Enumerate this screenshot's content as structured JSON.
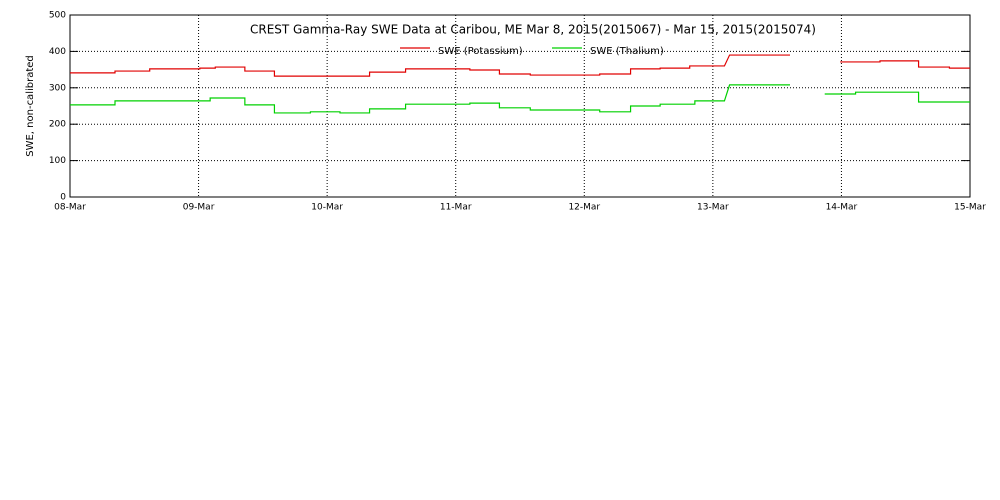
{
  "chart_data": {
    "type": "line",
    "title": "CREST Gamma-Ray SWE Data at Caribou, ME   Mar  8, 2015(2015067) - Mar 15, 2015(2015074)",
    "ylabel": "SWE, non-calibrated",
    "xlim": [
      0,
      7
    ],
    "xticks": [
      {
        "value": 0,
        "label": "08-Mar"
      },
      {
        "value": 1,
        "label": "09-Mar"
      },
      {
        "value": 2,
        "label": "10-Mar"
      },
      {
        "value": 3,
        "label": "11-Mar"
      },
      {
        "value": 4,
        "label": "12-Mar"
      },
      {
        "value": 5,
        "label": "13-Mar"
      },
      {
        "value": 6,
        "label": "14-Mar"
      },
      {
        "value": 7,
        "label": "15-Mar"
      }
    ],
    "ylim": [
      0,
      500
    ],
    "yticks": [
      0,
      100,
      200,
      300,
      400,
      500
    ],
    "grid": true,
    "series": [
      {
        "name": "SWE (Potassium)",
        "color": "#e00000",
        "x": [
          0,
          0.35,
          0.35,
          0.62,
          0.62,
          1.01,
          1.01,
          1.13,
          1.13,
          1.36,
          1.36,
          1.59,
          1.59,
          2.33,
          2.33,
          2.61,
          2.61,
          3.11,
          3.11,
          3.34,
          3.34,
          3.58,
          3.58,
          4.12,
          4.12,
          4.36,
          4.36,
          4.59,
          4.59,
          4.82,
          4.82,
          5.09,
          5.13,
          5.6,
          5.8,
          5.99,
          6.3,
          6.3,
          6.6,
          6.6,
          6.84,
          6.84,
          7
        ],
        "values": [
          341,
          341,
          346,
          346,
          352,
          352,
          354,
          354,
          357,
          357,
          346,
          346,
          332,
          332,
          343,
          343,
          352,
          352,
          349,
          349,
          338,
          338,
          335,
          335,
          338,
          338,
          352,
          352,
          354,
          354,
          360,
          360,
          390,
          390,
          null,
          371,
          371,
          374,
          374,
          357,
          357,
          354,
          354
        ]
      },
      {
        "name": "SWE (Thalium)",
        "color": "#00d000",
        "x": [
          0,
          0.35,
          0.35,
          1.09,
          1.09,
          1.36,
          1.36,
          1.59,
          1.59,
          1.87,
          1.87,
          2.1,
          2.1,
          2.33,
          2.33,
          2.61,
          2.61,
          3.11,
          3.11,
          3.34,
          3.34,
          3.58,
          3.58,
          4.12,
          4.12,
          4.36,
          4.36,
          4.59,
          4.59,
          4.86,
          4.86,
          5.09,
          5.13,
          5.6,
          5.75,
          5.87,
          6.11,
          6.11,
          6.6,
          6.6,
          7
        ],
        "values": [
          253,
          253,
          264,
          264,
          272,
          272,
          253,
          253,
          231,
          231,
          234,
          234,
          231,
          231,
          242,
          242,
          255,
          255,
          258,
          258,
          245,
          245,
          239,
          239,
          234,
          234,
          250,
          250,
          255,
          255,
          264,
          264,
          308,
          308,
          null,
          283,
          283,
          288,
          288,
          261,
          261
        ]
      }
    ]
  }
}
